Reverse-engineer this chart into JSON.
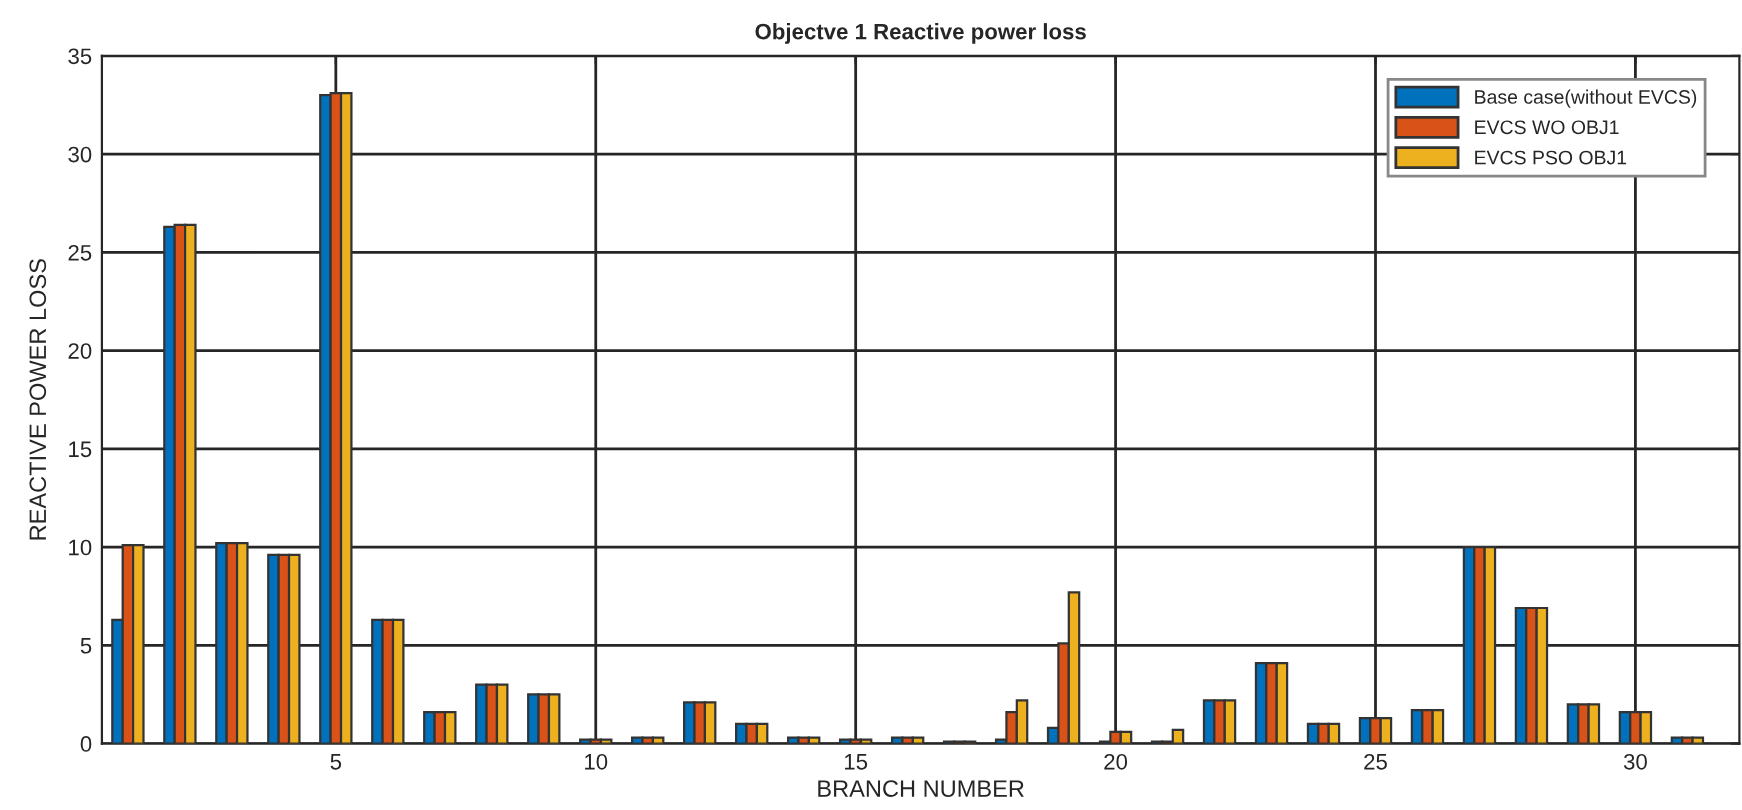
{
  "chart_data": {
    "type": "bar",
    "title": "Objectve 1 Reactive power loss",
    "xlabel": "BRANCH NUMBER",
    "ylabel": "REACTIVE POWER LOSS",
    "x": [
      1,
      2,
      3,
      4,
      5,
      6,
      7,
      8,
      9,
      10,
      11,
      12,
      13,
      14,
      15,
      16,
      17,
      18,
      19,
      20,
      21,
      22,
      23,
      24,
      25,
      26,
      27,
      28,
      29,
      30,
      31
    ],
    "series": [
      {
        "name": "Base case(without EVCS)",
        "color": "#0072bd",
        "values": [
          6.3,
          26.3,
          10.2,
          9.6,
          33.0,
          6.3,
          1.6,
          3.0,
          2.5,
          0.2,
          0.3,
          2.1,
          1.0,
          0.3,
          0.2,
          0.3,
          0.1,
          0.2,
          0.8,
          0.1,
          0.1,
          2.2,
          4.1,
          1.0,
          1.3,
          1.7,
          10.0,
          6.9,
          2.0,
          1.6,
          0.3
        ]
      },
      {
        "name": "EVCS WO OBJ1",
        "color": "#d95319",
        "values": [
          10.1,
          26.4,
          10.2,
          9.6,
          33.1,
          6.3,
          1.6,
          3.0,
          2.5,
          0.2,
          0.3,
          2.1,
          1.0,
          0.3,
          0.2,
          0.3,
          0.1,
          1.6,
          5.1,
          0.6,
          0.1,
          2.2,
          4.1,
          1.0,
          1.3,
          1.7,
          10.0,
          6.9,
          2.0,
          1.6,
          0.3
        ]
      },
      {
        "name": "EVCS PSO OBJ1",
        "color": "#edb120",
        "values": [
          10.1,
          26.4,
          10.2,
          9.6,
          33.1,
          6.3,
          1.6,
          3.0,
          2.5,
          0.2,
          0.3,
          2.1,
          1.0,
          0.3,
          0.2,
          0.3,
          0.1,
          2.2,
          7.7,
          0.6,
          0.7,
          2.2,
          4.1,
          1.0,
          1.3,
          1.7,
          10.0,
          6.9,
          2.0,
          1.6,
          0.3
        ]
      }
    ],
    "xlim": [
      0.5,
      32
    ],
    "xticks": [
      5,
      10,
      15,
      20,
      25,
      30
    ],
    "ylim": [
      0,
      35
    ],
    "yticks": [
      0,
      5,
      10,
      15,
      20,
      25,
      30,
      35
    ],
    "grid": true,
    "legend": "top right"
  }
}
